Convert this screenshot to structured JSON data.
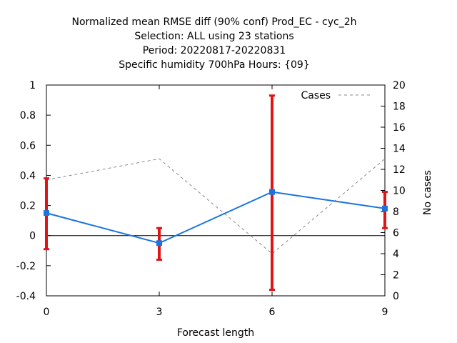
{
  "chart_data": {
    "type": "line",
    "title_lines": [
      "Normalized mean RMSE diff (90% conf) Prod_EC - cyc_2h",
      "Selection: ALL using    23 stations",
      "Period: 20220817-20220831",
      "Specific humidity 700hPa   Hours: {09}"
    ],
    "xlabel": "Forecast length",
    "ylabel": "",
    "y2label": "No cases",
    "x": [
      0,
      3,
      6,
      9
    ],
    "xticks": [
      "0",
      "3",
      "6",
      "9"
    ],
    "xlim": [
      0,
      9
    ],
    "ylim": [
      -0.4,
      1.0
    ],
    "yticks": [
      "-0.4",
      "-0.2",
      "0",
      "0.2",
      "0.4",
      "0.6",
      "0.8",
      "1"
    ],
    "y2lim": [
      0,
      20
    ],
    "y2ticks": [
      "0",
      "2",
      "4",
      "6",
      "8",
      "10",
      "12",
      "14",
      "16",
      "18",
      "20"
    ],
    "series": [
      {
        "name": "",
        "axis": "left",
        "color": "#1a73e0",
        "values": [
          0.15,
          -0.05,
          0.29,
          0.18
        ],
        "error_low": [
          -0.09,
          -0.16,
          -0.36,
          0.05
        ],
        "error_high": [
          0.38,
          0.05,
          0.93,
          0.29
        ],
        "error_color": "#e01414"
      },
      {
        "name": "Cases",
        "axis": "right",
        "color": "#888888",
        "dashed": true,
        "values": [
          11,
          13,
          4,
          13
        ]
      }
    ],
    "legend": {
      "placement": "top-right"
    },
    "grid": false
  }
}
